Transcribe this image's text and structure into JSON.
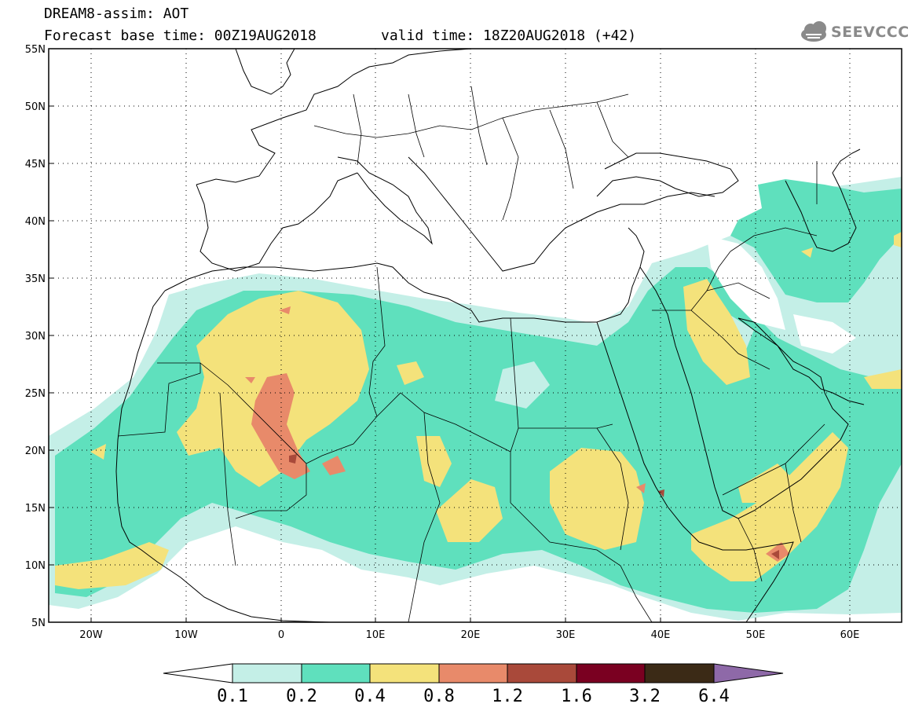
{
  "header": {
    "model_title": "DREAM8-assim: AOT",
    "base_time": "Forecast base time: 00Z19AUG2018",
    "valid_time": "valid time: 18Z20AUG2018 (+42)",
    "logo_text": "SEEVCCC",
    "logo_icon": "cloud-icon"
  },
  "map": {
    "lon_range": [
      -25,
      65
    ],
    "lat_range": [
      5,
      55
    ],
    "lat_ticks": [
      "5N",
      "10N",
      "15N",
      "20N",
      "25N",
      "30N",
      "35N",
      "40N",
      "45N",
      "50N",
      "55N"
    ],
    "lon_ticks": [
      "20W",
      "10W",
      "0",
      "10E",
      "20E",
      "30E",
      "40E",
      "50E",
      "60E"
    ],
    "grid": "dotted",
    "background": "#ffffff",
    "coastline_color": "#000000"
  },
  "colorbar": {
    "levels": [
      "0.1",
      "0.2",
      "0.4",
      "0.8",
      "1.2",
      "1.6",
      "3.2",
      "6.4"
    ],
    "colors": [
      "#ffffff",
      "#c4efe7",
      "#5fe0bd",
      "#f4e27b",
      "#e88a6a",
      "#a9493a",
      "#7a0021",
      "#3b2a16",
      "#8e69a8"
    ],
    "extends": "both"
  }
}
